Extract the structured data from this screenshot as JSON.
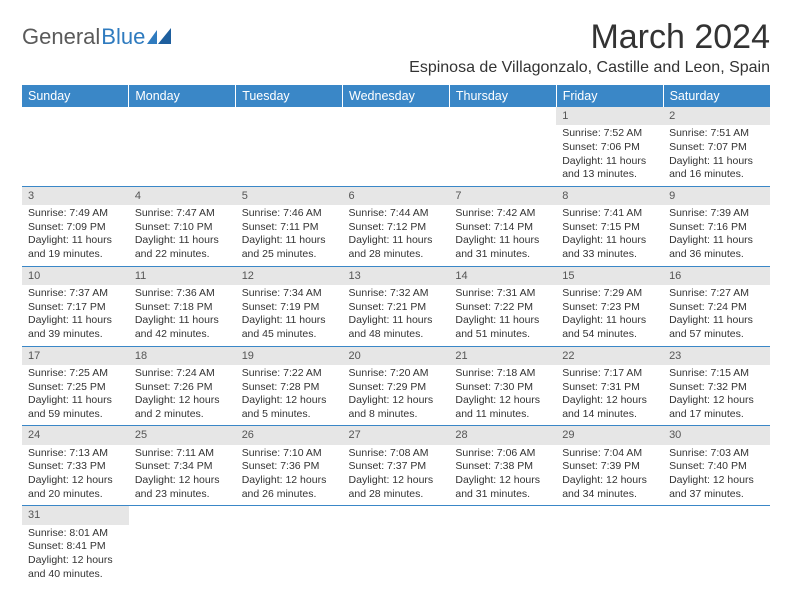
{
  "logo": {
    "text_gray": "General",
    "text_blue": "Blue"
  },
  "title": "March 2024",
  "location": "Espinosa de Villagonzalo, Castille and Leon, Spain",
  "header_bg": "#3a87c7",
  "daynum_bg": "#e6e6e6",
  "border_color": "#3a87c7",
  "weekdays": [
    "Sunday",
    "Monday",
    "Tuesday",
    "Wednesday",
    "Thursday",
    "Friday",
    "Saturday"
  ],
  "weeks": [
    {
      "nums": [
        "",
        "",
        "",
        "",
        "",
        "1",
        "2"
      ],
      "cells": [
        null,
        null,
        null,
        null,
        null,
        {
          "sunrise": "Sunrise: 7:52 AM",
          "sunset": "Sunset: 7:06 PM",
          "day1": "Daylight: 11 hours",
          "day2": "and 13 minutes."
        },
        {
          "sunrise": "Sunrise: 7:51 AM",
          "sunset": "Sunset: 7:07 PM",
          "day1": "Daylight: 11 hours",
          "day2": "and 16 minutes."
        }
      ]
    },
    {
      "nums": [
        "3",
        "4",
        "5",
        "6",
        "7",
        "8",
        "9"
      ],
      "cells": [
        {
          "sunrise": "Sunrise: 7:49 AM",
          "sunset": "Sunset: 7:09 PM",
          "day1": "Daylight: 11 hours",
          "day2": "and 19 minutes."
        },
        {
          "sunrise": "Sunrise: 7:47 AM",
          "sunset": "Sunset: 7:10 PM",
          "day1": "Daylight: 11 hours",
          "day2": "and 22 minutes."
        },
        {
          "sunrise": "Sunrise: 7:46 AM",
          "sunset": "Sunset: 7:11 PM",
          "day1": "Daylight: 11 hours",
          "day2": "and 25 minutes."
        },
        {
          "sunrise": "Sunrise: 7:44 AM",
          "sunset": "Sunset: 7:12 PM",
          "day1": "Daylight: 11 hours",
          "day2": "and 28 minutes."
        },
        {
          "sunrise": "Sunrise: 7:42 AM",
          "sunset": "Sunset: 7:14 PM",
          "day1": "Daylight: 11 hours",
          "day2": "and 31 minutes."
        },
        {
          "sunrise": "Sunrise: 7:41 AM",
          "sunset": "Sunset: 7:15 PM",
          "day1": "Daylight: 11 hours",
          "day2": "and 33 minutes."
        },
        {
          "sunrise": "Sunrise: 7:39 AM",
          "sunset": "Sunset: 7:16 PM",
          "day1": "Daylight: 11 hours",
          "day2": "and 36 minutes."
        }
      ]
    },
    {
      "nums": [
        "10",
        "11",
        "12",
        "13",
        "14",
        "15",
        "16"
      ],
      "cells": [
        {
          "sunrise": "Sunrise: 7:37 AM",
          "sunset": "Sunset: 7:17 PM",
          "day1": "Daylight: 11 hours",
          "day2": "and 39 minutes."
        },
        {
          "sunrise": "Sunrise: 7:36 AM",
          "sunset": "Sunset: 7:18 PM",
          "day1": "Daylight: 11 hours",
          "day2": "and 42 minutes."
        },
        {
          "sunrise": "Sunrise: 7:34 AM",
          "sunset": "Sunset: 7:19 PM",
          "day1": "Daylight: 11 hours",
          "day2": "and 45 minutes."
        },
        {
          "sunrise": "Sunrise: 7:32 AM",
          "sunset": "Sunset: 7:21 PM",
          "day1": "Daylight: 11 hours",
          "day2": "and 48 minutes."
        },
        {
          "sunrise": "Sunrise: 7:31 AM",
          "sunset": "Sunset: 7:22 PM",
          "day1": "Daylight: 11 hours",
          "day2": "and 51 minutes."
        },
        {
          "sunrise": "Sunrise: 7:29 AM",
          "sunset": "Sunset: 7:23 PM",
          "day1": "Daylight: 11 hours",
          "day2": "and 54 minutes."
        },
        {
          "sunrise": "Sunrise: 7:27 AM",
          "sunset": "Sunset: 7:24 PM",
          "day1": "Daylight: 11 hours",
          "day2": "and 57 minutes."
        }
      ]
    },
    {
      "nums": [
        "17",
        "18",
        "19",
        "20",
        "21",
        "22",
        "23"
      ],
      "cells": [
        {
          "sunrise": "Sunrise: 7:25 AM",
          "sunset": "Sunset: 7:25 PM",
          "day1": "Daylight: 11 hours",
          "day2": "and 59 minutes."
        },
        {
          "sunrise": "Sunrise: 7:24 AM",
          "sunset": "Sunset: 7:26 PM",
          "day1": "Daylight: 12 hours",
          "day2": "and 2 minutes."
        },
        {
          "sunrise": "Sunrise: 7:22 AM",
          "sunset": "Sunset: 7:28 PM",
          "day1": "Daylight: 12 hours",
          "day2": "and 5 minutes."
        },
        {
          "sunrise": "Sunrise: 7:20 AM",
          "sunset": "Sunset: 7:29 PM",
          "day1": "Daylight: 12 hours",
          "day2": "and 8 minutes."
        },
        {
          "sunrise": "Sunrise: 7:18 AM",
          "sunset": "Sunset: 7:30 PM",
          "day1": "Daylight: 12 hours",
          "day2": "and 11 minutes."
        },
        {
          "sunrise": "Sunrise: 7:17 AM",
          "sunset": "Sunset: 7:31 PM",
          "day1": "Daylight: 12 hours",
          "day2": "and 14 minutes."
        },
        {
          "sunrise": "Sunrise: 7:15 AM",
          "sunset": "Sunset: 7:32 PM",
          "day1": "Daylight: 12 hours",
          "day2": "and 17 minutes."
        }
      ]
    },
    {
      "nums": [
        "24",
        "25",
        "26",
        "27",
        "28",
        "29",
        "30"
      ],
      "cells": [
        {
          "sunrise": "Sunrise: 7:13 AM",
          "sunset": "Sunset: 7:33 PM",
          "day1": "Daylight: 12 hours",
          "day2": "and 20 minutes."
        },
        {
          "sunrise": "Sunrise: 7:11 AM",
          "sunset": "Sunset: 7:34 PM",
          "day1": "Daylight: 12 hours",
          "day2": "and 23 minutes."
        },
        {
          "sunrise": "Sunrise: 7:10 AM",
          "sunset": "Sunset: 7:36 PM",
          "day1": "Daylight: 12 hours",
          "day2": "and 26 minutes."
        },
        {
          "sunrise": "Sunrise: 7:08 AM",
          "sunset": "Sunset: 7:37 PM",
          "day1": "Daylight: 12 hours",
          "day2": "and 28 minutes."
        },
        {
          "sunrise": "Sunrise: 7:06 AM",
          "sunset": "Sunset: 7:38 PM",
          "day1": "Daylight: 12 hours",
          "day2": "and 31 minutes."
        },
        {
          "sunrise": "Sunrise: 7:04 AM",
          "sunset": "Sunset: 7:39 PM",
          "day1": "Daylight: 12 hours",
          "day2": "and 34 minutes."
        },
        {
          "sunrise": "Sunrise: 7:03 AM",
          "sunset": "Sunset: 7:40 PM",
          "day1": "Daylight: 12 hours",
          "day2": "and 37 minutes."
        }
      ]
    },
    {
      "nums": [
        "31",
        "",
        "",
        "",
        "",
        "",
        ""
      ],
      "cells": [
        {
          "sunrise": "Sunrise: 8:01 AM",
          "sunset": "Sunset: 8:41 PM",
          "day1": "Daylight: 12 hours",
          "day2": "and 40 minutes."
        },
        null,
        null,
        null,
        null,
        null,
        null
      ]
    }
  ]
}
